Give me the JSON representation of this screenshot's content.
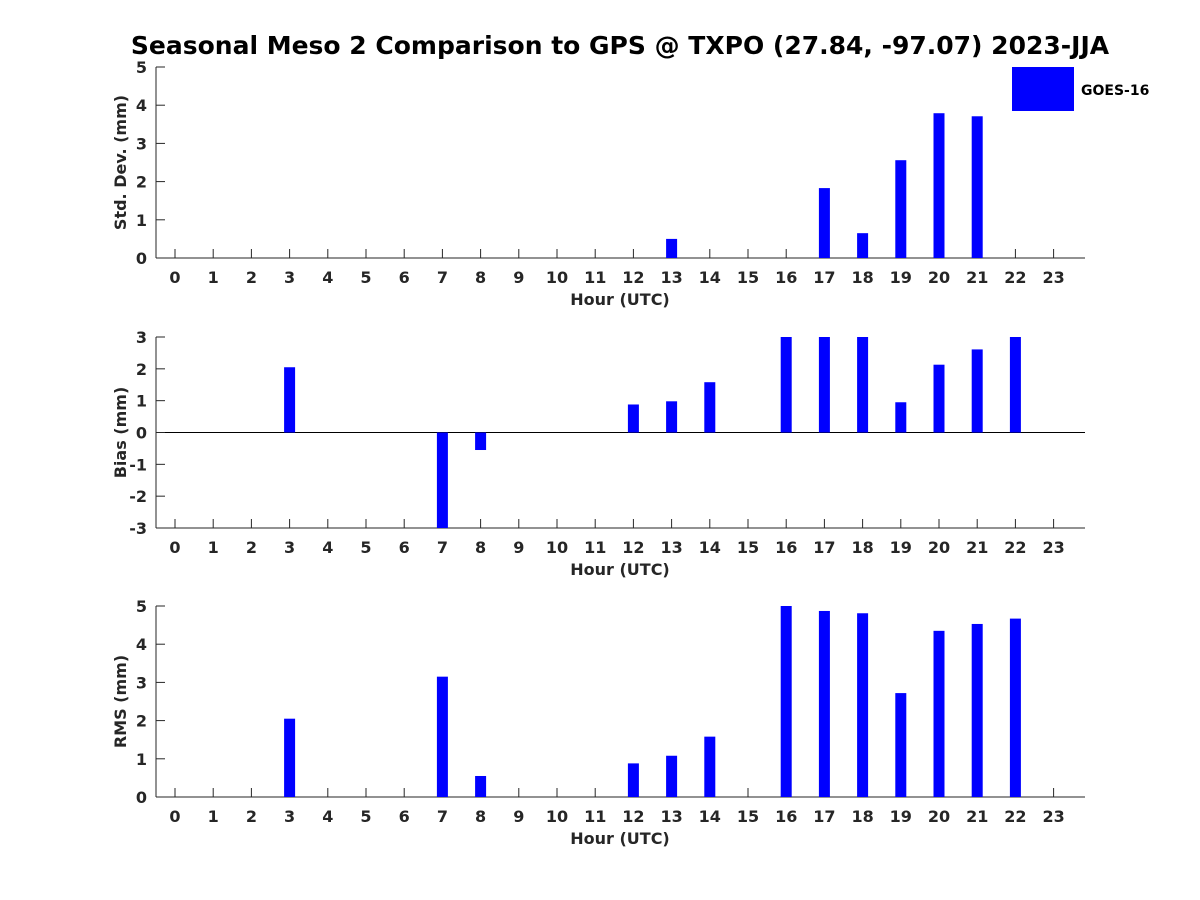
{
  "title": "Seasonal Meso 2 Comparison to GPS @ TXPO (27.84, -97.07) 2023-JJA",
  "colors": {
    "bar": "#0000ff",
    "axis": "#262626",
    "background": "#ffffff"
  },
  "legend": {
    "label": "GOES-16",
    "placement": "top-right"
  },
  "chart_data": [
    {
      "type": "bar",
      "title": "",
      "xlabel": "Hour (UTC)",
      "ylabel": "Std. Dev. (mm)",
      "ylim": [
        0,
        5
      ],
      "yticks": [
        0,
        1,
        2,
        3,
        4,
        5
      ],
      "categories": [
        "0",
        "1",
        "2",
        "3",
        "4",
        "5",
        "6",
        "7",
        "8",
        "9",
        "10",
        "11",
        "12",
        "13",
        "14",
        "15",
        "16",
        "17",
        "18",
        "19",
        "20",
        "21",
        "22",
        "23"
      ],
      "series": [
        {
          "name": "GOES-16",
          "values": [
            null,
            null,
            null,
            null,
            null,
            null,
            null,
            null,
            null,
            null,
            null,
            null,
            null,
            0.5,
            null,
            null,
            null,
            1.83,
            0.65,
            2.56,
            3.79,
            3.71,
            null,
            null
          ]
        }
      ]
    },
    {
      "type": "bar",
      "title": "",
      "xlabel": "Hour (UTC)",
      "ylabel": "Bias (mm)",
      "ylim": [
        -3,
        3
      ],
      "yticks": [
        -3,
        -2,
        -1,
        0,
        1,
        2,
        3
      ],
      "categories": [
        "0",
        "1",
        "2",
        "3",
        "4",
        "5",
        "6",
        "7",
        "8",
        "9",
        "10",
        "11",
        "12",
        "13",
        "14",
        "15",
        "16",
        "17",
        "18",
        "19",
        "20",
        "21",
        "22",
        "23"
      ],
      "series": [
        {
          "name": "GOES-16",
          "values": [
            null,
            null,
            null,
            2.05,
            null,
            null,
            null,
            -3.0,
            -0.55,
            null,
            null,
            null,
            0.88,
            0.98,
            1.58,
            null,
            3.0,
            3.0,
            3.0,
            0.95,
            2.13,
            2.61,
            3.0,
            null
          ]
        }
      ]
    },
    {
      "type": "bar",
      "title": "",
      "xlabel": "Hour (UTC)",
      "ylabel": "RMS (mm)",
      "ylim": [
        0,
        5
      ],
      "yticks": [
        0,
        1,
        2,
        3,
        4,
        5
      ],
      "categories": [
        "0",
        "1",
        "2",
        "3",
        "4",
        "5",
        "6",
        "7",
        "8",
        "9",
        "10",
        "11",
        "12",
        "13",
        "14",
        "15",
        "16",
        "17",
        "18",
        "19",
        "20",
        "21",
        "22",
        "23"
      ],
      "series": [
        {
          "name": "GOES-16",
          "values": [
            null,
            null,
            null,
            2.05,
            null,
            null,
            null,
            3.15,
            0.55,
            null,
            null,
            null,
            0.88,
            1.08,
            1.58,
            null,
            5.0,
            4.87,
            4.81,
            2.72,
            4.35,
            4.53,
            4.67,
            null
          ]
        }
      ]
    }
  ]
}
